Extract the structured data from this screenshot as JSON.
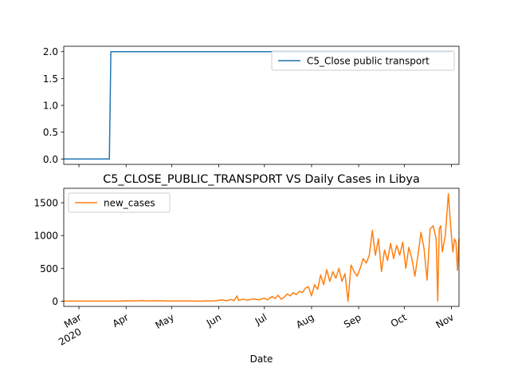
{
  "chart_data": [
    {
      "type": "line",
      "title": "",
      "xlabel": "",
      "ylabel": "",
      "ylim": [
        -0.1,
        2.1
      ],
      "yticks": [
        "0.0",
        "0.5",
        "1.0",
        "1.5",
        "2.0"
      ],
      "legend_position": "top-right",
      "series": [
        {
          "name": "C5_Close public transport",
          "color": "#1f77b4",
          "points": [
            [
              "2020-02-20",
              0
            ],
            [
              "2020-03-21",
              0
            ],
            [
              "2020-03-22",
              2
            ],
            [
              "2020-11-01",
              2
            ]
          ]
        }
      ]
    },
    {
      "type": "line",
      "title": "C5_CLOSE_PUBLIC_TRANSPORT VS Daily Cases in Libya",
      "xlabel": "Date",
      "ylabel": "",
      "ylim": [
        -80,
        1720
      ],
      "yticks": [
        "0",
        "500",
        "1000",
        "1500"
      ],
      "legend_position": "top-left",
      "x_ticks": [
        {
          "date": "2020-03-01",
          "label": "Mar",
          "sublabel": "2020"
        },
        {
          "date": "2020-04-01",
          "label": "Apr",
          "sublabel": ""
        },
        {
          "date": "2020-05-01",
          "label": "May",
          "sublabel": ""
        },
        {
          "date": "2020-06-01",
          "label": "Jun",
          "sublabel": ""
        },
        {
          "date": "2020-07-01",
          "label": "Jul",
          "sublabel": ""
        },
        {
          "date": "2020-08-01",
          "label": "Aug",
          "sublabel": ""
        },
        {
          "date": "2020-09-01",
          "label": "Sep",
          "sublabel": ""
        },
        {
          "date": "2020-10-01",
          "label": "Oct",
          "sublabel": ""
        },
        {
          "date": "2020-11-01",
          "label": "Nov",
          "sublabel": ""
        }
      ],
      "series": [
        {
          "name": "new_cases",
          "color": "#ff7f0e",
          "points": [
            [
              "2020-02-20",
              0
            ],
            [
              "2020-03-24",
              0
            ],
            [
              "2020-03-25",
              3
            ],
            [
              "2020-03-26",
              0
            ],
            [
              "2020-04-02",
              5
            ],
            [
              "2020-04-05",
              2
            ],
            [
              "2020-04-12",
              10
            ],
            [
              "2020-04-13",
              4
            ],
            [
              "2020-04-22",
              6
            ],
            [
              "2020-05-01",
              2
            ],
            [
              "2020-05-10",
              3
            ],
            [
              "2020-05-20",
              1
            ],
            [
              "2020-05-30",
              5
            ],
            [
              "2020-06-03",
              20
            ],
            [
              "2020-06-06",
              5
            ],
            [
              "2020-06-09",
              25
            ],
            [
              "2020-06-11",
              8
            ],
            [
              "2020-06-13",
              80
            ],
            [
              "2020-06-14",
              10
            ],
            [
              "2020-06-17",
              30
            ],
            [
              "2020-06-20",
              15
            ],
            [
              "2020-06-24",
              35
            ],
            [
              "2020-06-27",
              20
            ],
            [
              "2020-07-01",
              45
            ],
            [
              "2020-07-03",
              20
            ],
            [
              "2020-07-06",
              70
            ],
            [
              "2020-07-08",
              40
            ],
            [
              "2020-07-10",
              90
            ],
            [
              "2020-07-12",
              30
            ],
            [
              "2020-07-14",
              60
            ],
            [
              "2020-07-16",
              110
            ],
            [
              "2020-07-18",
              80
            ],
            [
              "2020-07-20",
              130
            ],
            [
              "2020-07-22",
              100
            ],
            [
              "2020-07-24",
              150
            ],
            [
              "2020-07-26",
              130
            ],
            [
              "2020-07-28",
              200
            ],
            [
              "2020-07-30",
              220
            ],
            [
              "2020-08-01",
              80
            ],
            [
              "2020-08-03",
              250
            ],
            [
              "2020-08-05",
              180
            ],
            [
              "2020-08-07",
              400
            ],
            [
              "2020-08-09",
              250
            ],
            [
              "2020-08-11",
              480
            ],
            [
              "2020-08-13",
              300
            ],
            [
              "2020-08-15",
              450
            ],
            [
              "2020-08-17",
              350
            ],
            [
              "2020-08-19",
              500
            ],
            [
              "2020-08-21",
              300
            ],
            [
              "2020-08-23",
              420
            ],
            [
              "2020-08-25",
              0
            ],
            [
              "2020-08-27",
              550
            ],
            [
              "2020-08-29",
              450
            ],
            [
              "2020-08-31",
              380
            ],
            [
              "2020-09-02",
              500
            ],
            [
              "2020-09-04",
              650
            ],
            [
              "2020-09-06",
              580
            ],
            [
              "2020-09-08",
              700
            ],
            [
              "2020-09-10",
              1080
            ],
            [
              "2020-09-12",
              700
            ],
            [
              "2020-09-14",
              950
            ],
            [
              "2020-09-16",
              450
            ],
            [
              "2020-09-18",
              780
            ],
            [
              "2020-09-20",
              620
            ],
            [
              "2020-09-22",
              880
            ],
            [
              "2020-09-24",
              650
            ],
            [
              "2020-09-26",
              850
            ],
            [
              "2020-09-28",
              700
            ],
            [
              "2020-09-30",
              900
            ],
            [
              "2020-10-02",
              500
            ],
            [
              "2020-10-04",
              820
            ],
            [
              "2020-10-06",
              650
            ],
            [
              "2020-10-08",
              380
            ],
            [
              "2020-10-10",
              700
            ],
            [
              "2020-10-12",
              1050
            ],
            [
              "2020-10-14",
              800
            ],
            [
              "2020-10-16",
              320
            ],
            [
              "2020-10-18",
              1100
            ],
            [
              "2020-10-20",
              1150
            ],
            [
              "2020-10-22",
              950
            ],
            [
              "2020-10-23",
              0
            ],
            [
              "2020-10-24",
              1100
            ],
            [
              "2020-10-25",
              1150
            ],
            [
              "2020-10-26",
              750
            ],
            [
              "2020-10-28",
              1000
            ],
            [
              "2020-10-30",
              1640
            ],
            [
              "2020-11-01",
              1000
            ],
            [
              "2020-11-02",
              750
            ],
            [
              "2020-11-03",
              950
            ],
            [
              "2020-11-04",
              900
            ],
            [
              "2020-11-05",
              470
            ],
            [
              "2020-11-06",
              950
            ]
          ]
        }
      ]
    }
  ]
}
